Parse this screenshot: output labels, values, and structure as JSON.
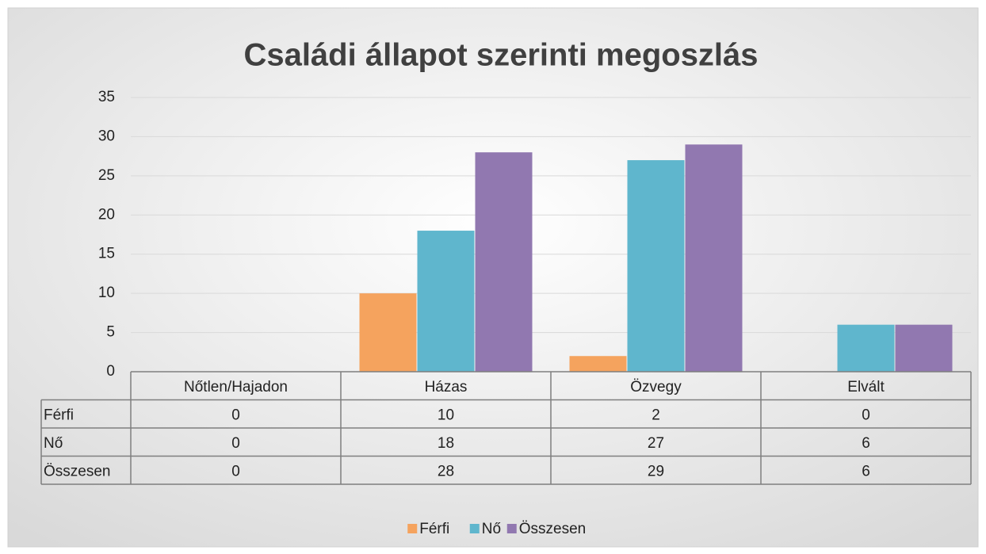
{
  "chart_data": {
    "type": "bar",
    "title": "Családi állapot szerinti megoszlás",
    "categories": [
      "Nőtlen/Hajadon",
      "Házas",
      "Özvegy",
      "Elvált"
    ],
    "series": [
      {
        "name": "Férfi",
        "color": "#f5a35e",
        "values": [
          0,
          10,
          2,
          0
        ]
      },
      {
        "name": "Nő",
        "color": "#5fb6cd",
        "values": [
          0,
          18,
          27,
          6
        ]
      },
      {
        "name": "Összesen",
        "color": "#9178b0",
        "values": [
          0,
          28,
          29,
          6
        ]
      }
    ],
    "ylim": [
      0,
      35
    ],
    "yticks": [
      0,
      5,
      10,
      15,
      20,
      25,
      30,
      35
    ],
    "grid": true,
    "legend": "bottom",
    "data_table": true
  }
}
